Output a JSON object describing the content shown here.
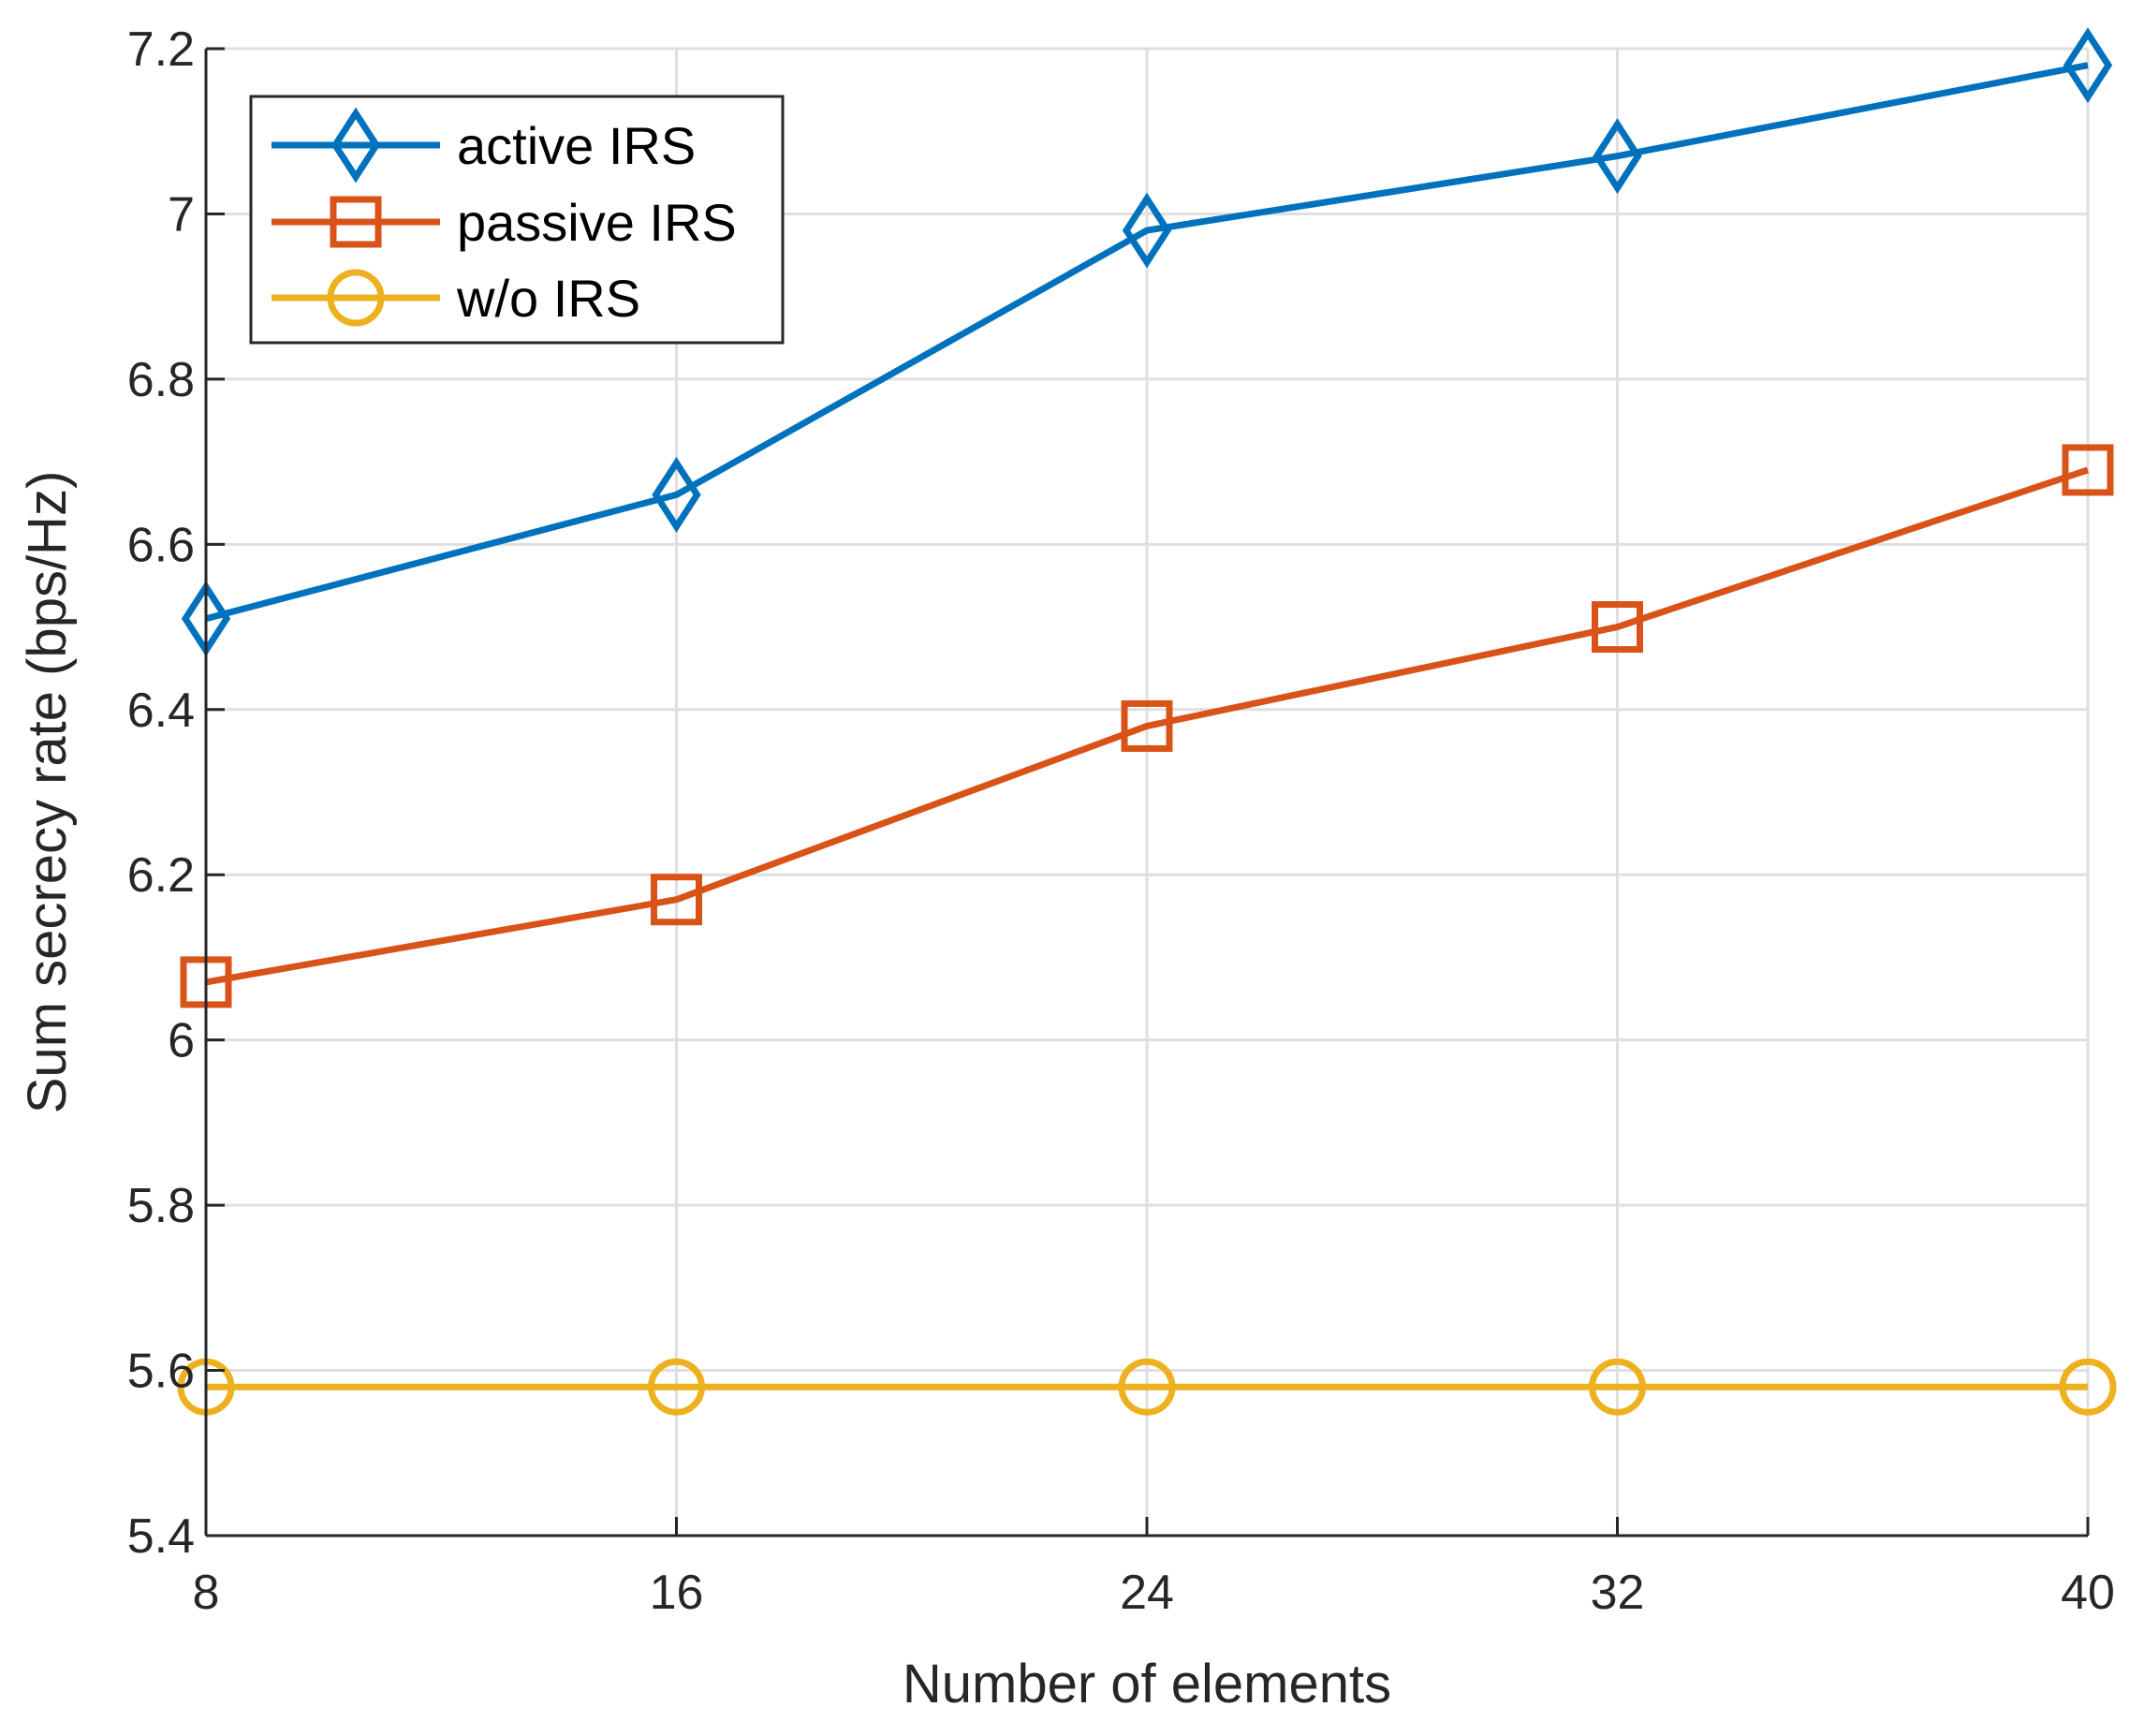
{
  "chart_data": {
    "type": "line",
    "title": "",
    "xlabel": "Number of elements",
    "ylabel": "Sum secrecy rate (bps/Hz)",
    "x": [
      8,
      16,
      24,
      32,
      40
    ],
    "xlim": [
      8,
      40
    ],
    "ylim": [
      5.4,
      7.2
    ],
    "xticks": [
      "8",
      "16",
      "24",
      "32",
      "40"
    ],
    "yticks": [
      "5.4",
      "5.6",
      "5.8",
      "6",
      "6.2",
      "6.4",
      "6.6",
      "6.8",
      "7",
      "7.2"
    ],
    "grid": true,
    "legend_location": "top-left",
    "series": [
      {
        "name": "active IRS",
        "color": "#0072BD",
        "marker": "diamond",
        "values": [
          6.51,
          6.66,
          6.98,
          7.07,
          7.18
        ]
      },
      {
        "name": "passive IRS",
        "color": "#D95319",
        "marker": "square",
        "values": [
          6.07,
          6.17,
          6.38,
          6.5,
          6.69
        ]
      },
      {
        "name": "w/o IRS",
        "color": "#EDB120",
        "marker": "circle",
        "values": [
          5.58,
          5.58,
          5.58,
          5.58,
          5.58
        ]
      }
    ]
  }
}
